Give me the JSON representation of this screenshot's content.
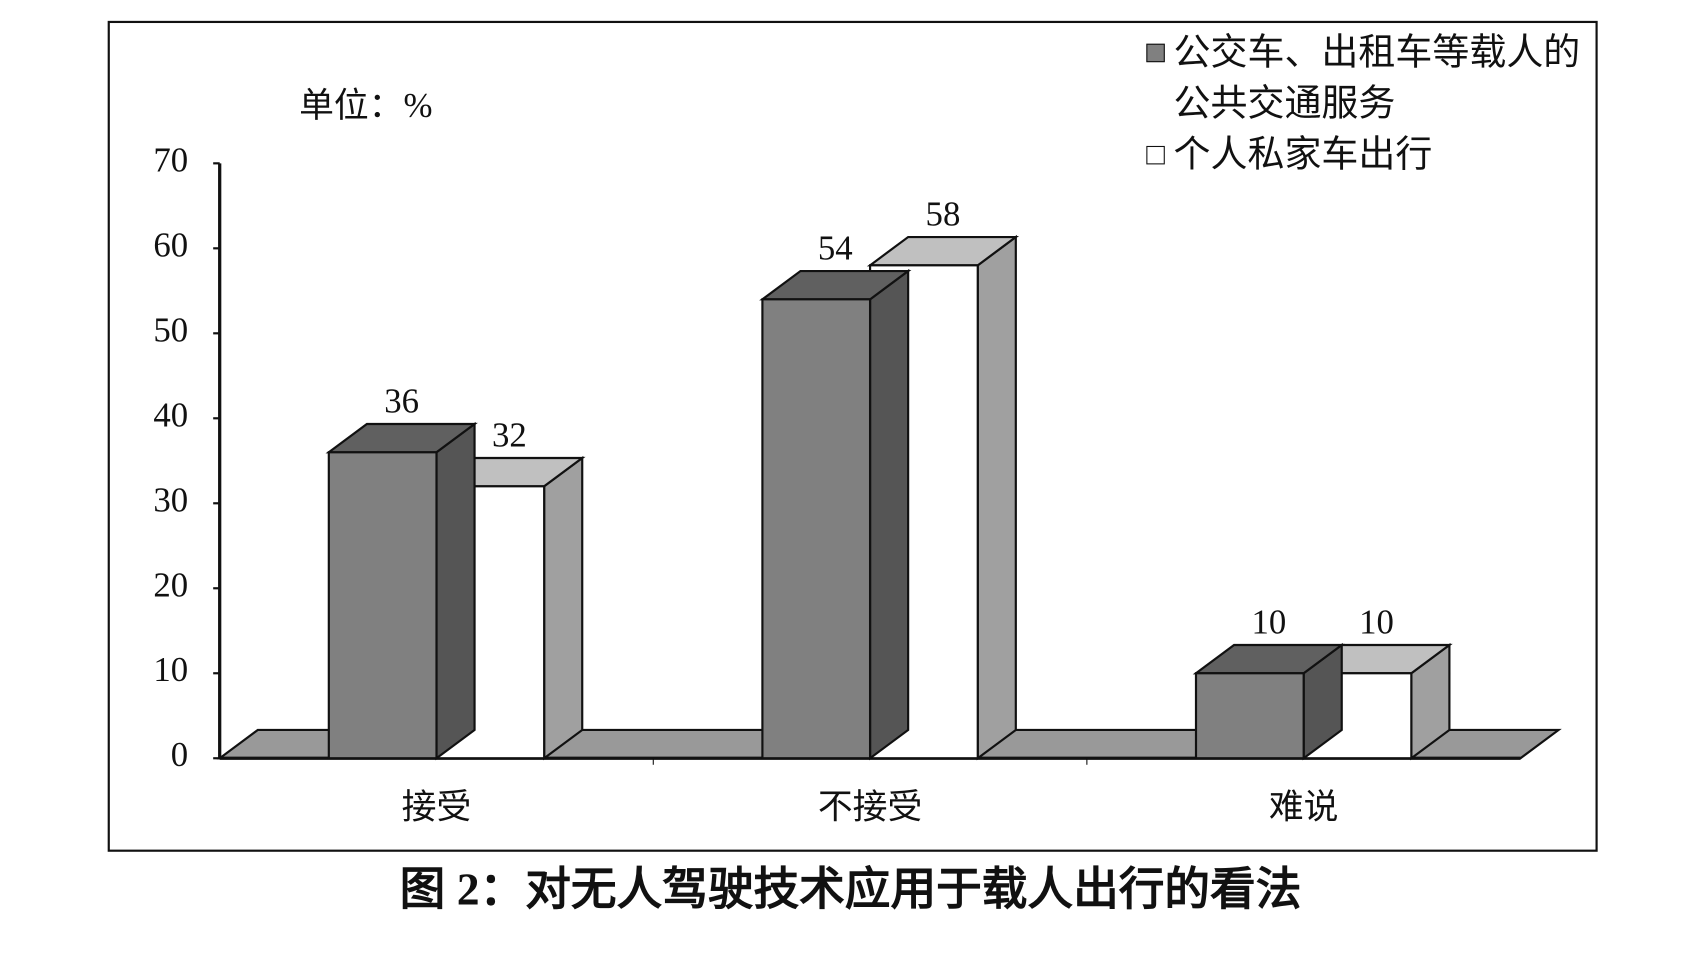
{
  "chart_data": {
    "type": "bar",
    "title": "图 2：对无人驾驶技术应用于载人出行的看法",
    "y_label": "单位：%",
    "categories": [
      "接受",
      "不接受",
      "难说"
    ],
    "series": [
      {
        "name": "公交车、出租车等载人的公共交通服务",
        "color": "#808080",
        "values": [
          36,
          54,
          10
        ]
      },
      {
        "name": "个人私家车出行",
        "color": "#ffffff",
        "values": [
          32,
          58,
          10
        ]
      }
    ],
    "ylim": [
      0,
      70
    ],
    "yticks": [
      0,
      10,
      20,
      30,
      40,
      50,
      60,
      70
    ],
    "grid": false,
    "legend": "top-right"
  }
}
